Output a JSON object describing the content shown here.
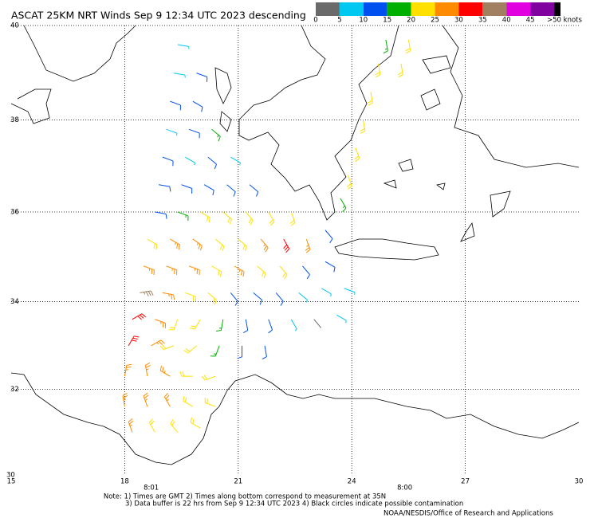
{
  "header": {
    "title": "ASCAT 25KM NRT Winds Sep  9 12:34 UTC 2023 descending"
  },
  "colorbar": {
    "bins": [
      0,
      5,
      10,
      15,
      20,
      25,
      30,
      35,
      40,
      45,
      50
    ],
    "colors": [
      "#6a6a6a",
      "#00c8f0",
      "#0050f0",
      "#00b000",
      "#ffe000",
      "#ff8c00",
      "#ff0000",
      "#a08060",
      "#e000e0",
      "#8000a0"
    ],
    "overflow_color": "#000000",
    "ticks": [
      0,
      5,
      10,
      15,
      20,
      25,
      30,
      35,
      40,
      45,
      {
        "value": 50,
        "label": ">50 knots"
      }
    ]
  },
  "map": {
    "projection": "mercator",
    "lonlim": [
      15,
      30
    ],
    "latlim": [
      30,
      40
    ],
    "lonticks": [
      15,
      18,
      21,
      24,
      27,
      30
    ],
    "latticks": [
      30,
      32,
      34,
      36,
      38,
      40
    ],
    "grid": true
  },
  "pass_times": [
    {
      "lon": 18.7,
      "label": "8:01"
    },
    {
      "lon": 25.4,
      "label": "8:00"
    }
  ],
  "notes": [
    "Note: 1) Times are GMT 2) Times along bottom correspond to measurement at 35N",
    "3) Data buffer is 22 hrs from Sep  9 12:34 UTC 2023 4) Black circles indicate possible contamination"
  ],
  "credit": "NOAA/NESDIS/Office of Research and Applications",
  "wind": {
    "barbs": [
      [
        18.2,
        31.0,
        27,
        340
      ],
      [
        18.8,
        31.0,
        24,
        330
      ],
      [
        19.4,
        31.0,
        22,
        320
      ],
      [
        20.0,
        31.1,
        21,
        300
      ],
      [
        18.0,
        31.6,
        26,
        350
      ],
      [
        18.6,
        31.6,
        28,
        340
      ],
      [
        19.2,
        31.6,
        27,
        330
      ],
      [
        19.8,
        31.6,
        22,
        300
      ],
      [
        20.4,
        31.6,
        20,
        290
      ],
      [
        18.0,
        32.3,
        25,
        10
      ],
      [
        18.6,
        32.3,
        29,
        350
      ],
      [
        19.2,
        32.3,
        27,
        300
      ],
      [
        19.8,
        32.3,
        22,
        270
      ],
      [
        20.4,
        32.3,
        21,
        250
      ],
      [
        18.1,
        33.0,
        30,
        30
      ],
      [
        18.7,
        33.0,
        26,
        60
      ],
      [
        19.3,
        33.0,
        24,
        250
      ],
      [
        19.9,
        33.0,
        21,
        230
      ],
      [
        20.5,
        33.0,
        18,
        200
      ],
      [
        21.1,
        33.0,
        12,
        180
      ],
      [
        21.7,
        33.0,
        10,
        170
      ],
      [
        18.2,
        33.6,
        32,
        60
      ],
      [
        18.8,
        33.6,
        26,
        110
      ],
      [
        19.4,
        33.6,
        24,
        200
      ],
      [
        20.0,
        33.6,
        20,
        210
      ],
      [
        20.6,
        33.6,
        17,
        190
      ],
      [
        21.2,
        33.6,
        12,
        170
      ],
      [
        21.8,
        33.6,
        11,
        160
      ],
      [
        22.4,
        33.6,
        9,
        150
      ],
      [
        23.0,
        33.6,
        4,
        140
      ],
      [
        23.6,
        33.7,
        7,
        120
      ],
      [
        18.4,
        34.2,
        38,
        80
      ],
      [
        19.0,
        34.2,
        26,
        100
      ],
      [
        19.6,
        34.2,
        22,
        110
      ],
      [
        20.2,
        34.2,
        21,
        130
      ],
      [
        20.8,
        34.2,
        12,
        140
      ],
      [
        21.4,
        34.2,
        11,
        130
      ],
      [
        22.0,
        34.2,
        10,
        140
      ],
      [
        22.6,
        34.2,
        8,
        130
      ],
      [
        23.2,
        34.3,
        5,
        120
      ],
      [
        23.8,
        34.3,
        7,
        110
      ],
      [
        18.5,
        34.8,
        26,
        110
      ],
      [
        19.1,
        34.8,
        27,
        110
      ],
      [
        19.7,
        34.8,
        26,
        110
      ],
      [
        20.3,
        34.8,
        23,
        120
      ],
      [
        20.9,
        34.8,
        26,
        120
      ],
      [
        21.5,
        34.8,
        22,
        130
      ],
      [
        22.1,
        34.8,
        20,
        140
      ],
      [
        22.7,
        34.8,
        13,
        140
      ],
      [
        23.3,
        34.9,
        10,
        120
      ],
      [
        18.6,
        35.4,
        23,
        120
      ],
      [
        19.2,
        35.4,
        27,
        120
      ],
      [
        19.8,
        35.4,
        26,
        125
      ],
      [
        20.4,
        35.4,
        22,
        130
      ],
      [
        21.0,
        35.4,
        24,
        130
      ],
      [
        21.6,
        35.4,
        27,
        140
      ],
      [
        22.2,
        35.4,
        31,
        150
      ],
      [
        22.8,
        35.4,
        26,
        160
      ],
      [
        23.3,
        35.6,
        12,
        140
      ],
      [
        18.8,
        36.0,
        14,
        100
      ],
      [
        19.4,
        36.0,
        17,
        110
      ],
      [
        20.0,
        36.0,
        21,
        120
      ],
      [
        20.6,
        36.0,
        22,
        130
      ],
      [
        21.2,
        36.0,
        22,
        140
      ],
      [
        21.8,
        36.0,
        24,
        150
      ],
      [
        22.4,
        36.0,
        21,
        160
      ],
      [
        23.7,
        36.3,
        17,
        150
      ],
      [
        18.9,
        36.6,
        12,
        100
      ],
      [
        19.5,
        36.6,
        10,
        110
      ],
      [
        20.1,
        36.6,
        11,
        120
      ],
      [
        20.7,
        36.6,
        13,
        130
      ],
      [
        21.3,
        36.6,
        12,
        130
      ],
      [
        23.9,
        36.8,
        21,
        160
      ],
      [
        19.0,
        37.2,
        11,
        110
      ],
      [
        19.6,
        37.2,
        9,
        120
      ],
      [
        20.2,
        37.2,
        12,
        130
      ],
      [
        20.8,
        37.2,
        8,
        120
      ],
      [
        24.1,
        37.4,
        22,
        160
      ],
      [
        19.1,
        37.8,
        8,
        110
      ],
      [
        19.7,
        37.8,
        12,
        110
      ],
      [
        20.3,
        37.8,
        15,
        130
      ],
      [
        24.3,
        38.0,
        24,
        170
      ],
      [
        19.2,
        38.4,
        10,
        110
      ],
      [
        19.8,
        38.4,
        11,
        120
      ],
      [
        24.5,
        38.6,
        23,
        170
      ],
      [
        19.3,
        39.0,
        9,
        100
      ],
      [
        19.9,
        39.0,
        10,
        110
      ],
      [
        24.7,
        39.2,
        21,
        170
      ],
      [
        25.3,
        39.2,
        22,
        170
      ],
      [
        19.4,
        39.6,
        7,
        100
      ],
      [
        24.9,
        39.7,
        17,
        170
      ],
      [
        25.5,
        39.7,
        20,
        170
      ]
    ]
  }
}
